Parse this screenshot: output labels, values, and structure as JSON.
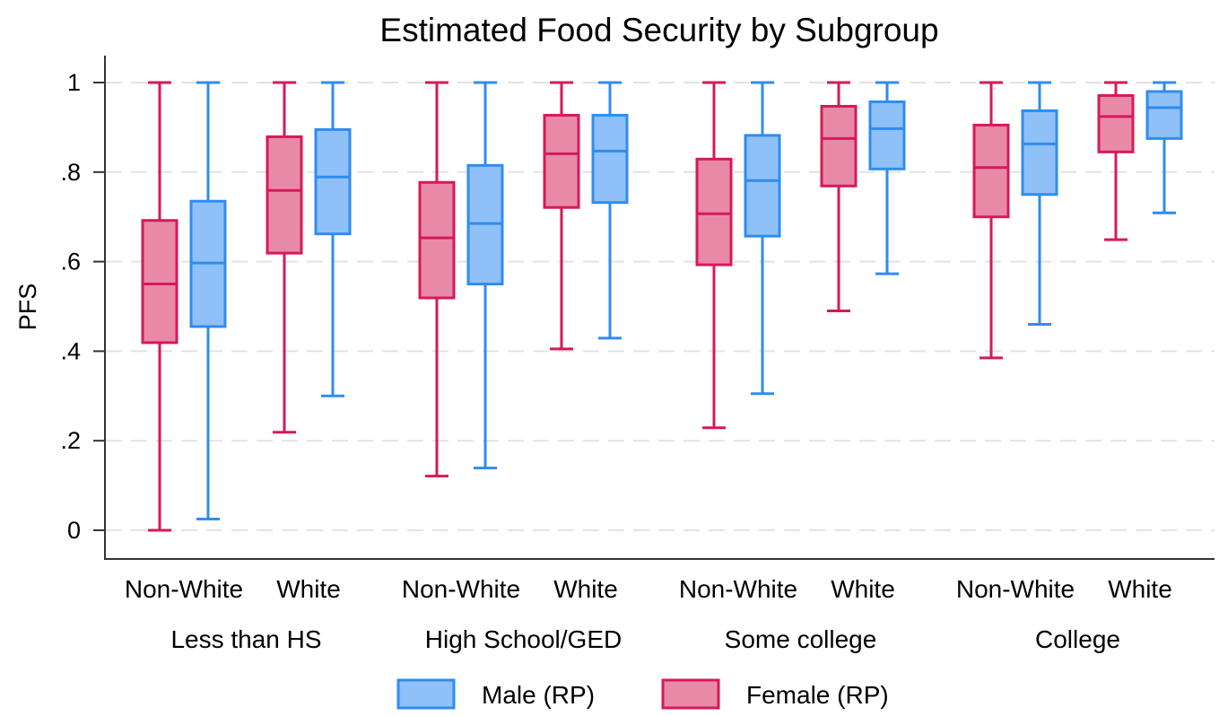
{
  "chart_data": {
    "type": "box",
    "title": "Estimated Food Security by Subgroup",
    "xlabel": "",
    "ylabel": "PFS",
    "ylim": [
      0,
      1
    ],
    "yticks": [
      0,
      0.2,
      0.4,
      0.6,
      0.8,
      1
    ],
    "ytick_labels": [
      "0",
      ".2",
      ".4",
      ".6",
      ".8",
      "1"
    ],
    "grid": true,
    "legend_position": "bottom",
    "legend": [
      {
        "name": "Male (RP)",
        "fill": "#8fc0f7",
        "stroke": "#2f8cf0"
      },
      {
        "name": "Female (RP)",
        "fill": "#e889a8",
        "stroke": "#d6195a"
      }
    ],
    "groups": [
      {
        "label": "Less than HS",
        "subgroups": [
          {
            "label": "Non-White",
            "series": [
              {
                "name": "Female (RP)",
                "min": 0.0,
                "q1": 0.419,
                "median": 0.55,
                "q3": 0.692,
                "max": 1.0
              },
              {
                "name": "Male (RP)",
                "min": 0.025,
                "q1": 0.455,
                "median": 0.597,
                "q3": 0.735,
                "max": 1.0
              }
            ]
          },
          {
            "label": "White",
            "series": [
              {
                "name": "Female (RP)",
                "min": 0.219,
                "q1": 0.619,
                "median": 0.759,
                "q3": 0.879,
                "max": 1.0
              },
              {
                "name": "Male (RP)",
                "min": 0.3,
                "q1": 0.662,
                "median": 0.789,
                "q3": 0.895,
                "max": 1.0
              }
            ]
          }
        ]
      },
      {
        "label": "High School/GED",
        "subgroups": [
          {
            "label": "Non-White",
            "series": [
              {
                "name": "Female (RP)",
                "min": 0.121,
                "q1": 0.519,
                "median": 0.653,
                "q3": 0.777,
                "max": 1.0
              },
              {
                "name": "Male (RP)",
                "min": 0.139,
                "q1": 0.55,
                "median": 0.685,
                "q3": 0.815,
                "max": 1.0
              }
            ]
          },
          {
            "label": "White",
            "series": [
              {
                "name": "Female (RP)",
                "min": 0.405,
                "q1": 0.721,
                "median": 0.841,
                "q3": 0.927,
                "max": 1.0
              },
              {
                "name": "Male (RP)",
                "min": 0.429,
                "q1": 0.732,
                "median": 0.847,
                "q3": 0.927,
                "max": 1.0
              }
            ]
          }
        ]
      },
      {
        "label": "Some college",
        "subgroups": [
          {
            "label": "Non-White",
            "series": [
              {
                "name": "Female (RP)",
                "min": 0.229,
                "q1": 0.593,
                "median": 0.707,
                "q3": 0.829,
                "max": 1.0
              },
              {
                "name": "Male (RP)",
                "min": 0.305,
                "q1": 0.657,
                "median": 0.781,
                "q3": 0.882,
                "max": 1.0
              }
            ]
          },
          {
            "label": "White",
            "series": [
              {
                "name": "Female (RP)",
                "min": 0.49,
                "q1": 0.769,
                "median": 0.875,
                "q3": 0.947,
                "max": 1.0
              },
              {
                "name": "Male (RP)",
                "min": 0.573,
                "q1": 0.807,
                "median": 0.897,
                "q3": 0.957,
                "max": 1.0
              }
            ]
          }
        ]
      },
      {
        "label": "College",
        "subgroups": [
          {
            "label": "Non-White",
            "series": [
              {
                "name": "Female (RP)",
                "min": 0.385,
                "q1": 0.7,
                "median": 0.81,
                "q3": 0.905,
                "max": 1.0
              },
              {
                "name": "Male (RP)",
                "min": 0.46,
                "q1": 0.75,
                "median": 0.863,
                "q3": 0.937,
                "max": 1.0
              }
            ]
          },
          {
            "label": "White",
            "series": [
              {
                "name": "Female (RP)",
                "min": 0.649,
                "q1": 0.845,
                "median": 0.924,
                "q3": 0.971,
                "max": 1.0
              },
              {
                "name": "Male (RP)",
                "min": 0.709,
                "q1": 0.875,
                "median": 0.944,
                "q3": 0.98,
                "max": 1.0
              }
            ]
          }
        ]
      }
    ]
  }
}
